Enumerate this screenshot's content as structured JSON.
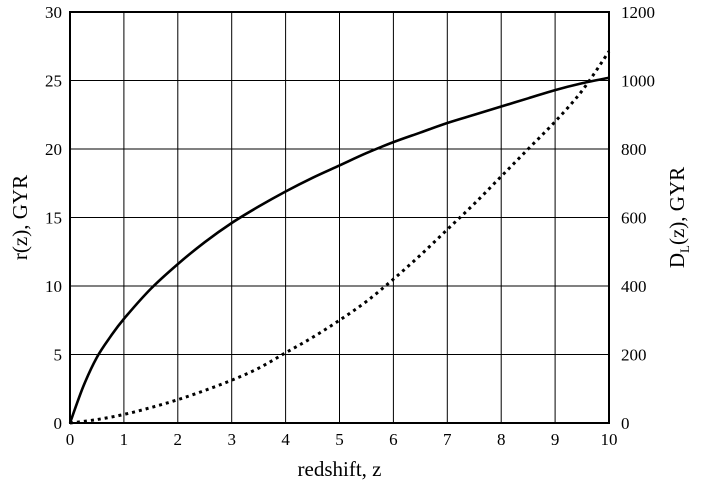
{
  "chart_data": {
    "type": "line",
    "title": "",
    "xlabel": "redshift, z",
    "ylabel_left": "r(z), GYR",
    "ylabel_right": {
      "prefix": "D",
      "subscript": "L",
      "suffix": "(z), GYR"
    },
    "xlim": [
      0,
      10
    ],
    "ylim_left": [
      0,
      30
    ],
    "ylim_right": [
      0,
      1200
    ],
    "x_ticks": [
      "0",
      "1",
      "2",
      "3",
      "4",
      "5",
      "6",
      "7",
      "8",
      "9",
      "10"
    ],
    "y_left_ticks": [
      "0",
      "5",
      "10",
      "15",
      "20",
      "25",
      "30"
    ],
    "y_right_ticks": [
      "0",
      "200",
      "400",
      "600",
      "800",
      "1000",
      "1200"
    ],
    "grid": true,
    "legend": "none",
    "series": [
      {
        "axis": "left",
        "style": "solid",
        "color": "#000000",
        "x": [
          0,
          0.25,
          0.5,
          0.75,
          1,
          1.5,
          2,
          2.5,
          3,
          3.5,
          4,
          4.5,
          5,
          5.5,
          6,
          6.5,
          7,
          7.5,
          8,
          8.5,
          9,
          9.5,
          10
        ],
        "y": [
          0,
          2.7,
          4.8,
          6.3,
          7.6,
          9.8,
          11.6,
          13.2,
          14.6,
          15.8,
          16.9,
          17.9,
          18.8,
          19.7,
          20.5,
          21.2,
          21.9,
          22.5,
          23.1,
          23.7,
          24.3,
          24.8,
          25.2
        ]
      },
      {
        "axis": "right",
        "style": "dotted",
        "color": "#000000",
        "x": [
          0,
          0.5,
          1,
          1.5,
          2,
          2.5,
          3,
          3.5,
          4,
          4.5,
          5,
          5.5,
          6,
          6.5,
          7,
          7.5,
          8,
          8.5,
          9,
          9.5,
          10
        ],
        "y": [
          0,
          10,
          25,
          45,
          68,
          95,
          125,
          160,
          205,
          250,
          300,
          355,
          420,
          490,
          565,
          640,
          720,
          800,
          880,
          970,
          1085
        ]
      }
    ]
  }
}
